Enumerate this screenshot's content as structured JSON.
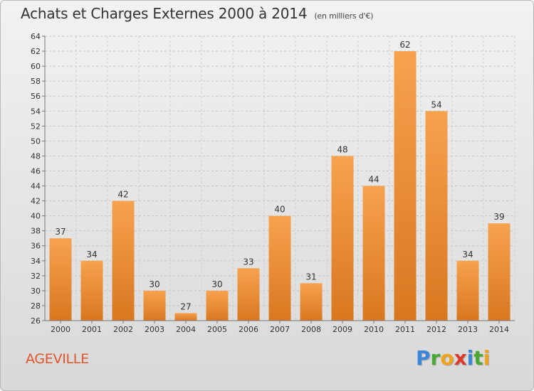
{
  "title": "Achats et Charges Externes 2000 à 2014",
  "subtitle": "(en milliers d'€)",
  "place": "AGEVILLE",
  "logo": {
    "p": "P",
    "r": "r",
    "o": "o",
    "x": "x",
    "i1": "i",
    "t": "t",
    "i2": "i"
  },
  "colors": {
    "bar_light": "#f7a24e",
    "bar_dark": "#d97720",
    "place": "#e4542a"
  },
  "chart_data": {
    "type": "bar",
    "title": "Achats et Charges Externes 2000 à 2014",
    "subtitle": "(en milliers d'€)",
    "xlabel": "",
    "ylabel": "",
    "categories": [
      "2000",
      "2001",
      "2002",
      "2003",
      "2004",
      "2005",
      "2006",
      "2007",
      "2008",
      "2009",
      "2010",
      "2011",
      "2012",
      "2013",
      "2014"
    ],
    "values": [
      37,
      34,
      42,
      30,
      27,
      30,
      33,
      40,
      31,
      48,
      44,
      62,
      54,
      34,
      39
    ],
    "ylim": [
      26,
      64
    ],
    "yticks": [
      26,
      28,
      30,
      32,
      34,
      36,
      38,
      40,
      42,
      44,
      46,
      48,
      50,
      52,
      54,
      56,
      58,
      60,
      62,
      64
    ],
    "grid": true,
    "legend": "none"
  }
}
